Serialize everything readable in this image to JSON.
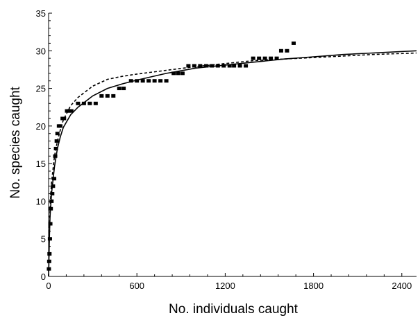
{
  "chart_data": {
    "type": "scatter",
    "title": "",
    "xlabel": "No. individuals caught",
    "ylabel": "No. species caught",
    "xlim": [
      0,
      2500
    ],
    "ylim": [
      0,
      35
    ],
    "xticks": [
      0,
      600,
      1200,
      1800,
      2400
    ],
    "yticks": [
      0,
      5,
      10,
      15,
      20,
      25,
      30,
      35
    ],
    "grid": false,
    "legend": "none",
    "colors": {
      "series": "#000000",
      "axis": "#000000",
      "background": "#ffffff"
    },
    "series": [
      {
        "kind": "observed-steps",
        "style": "square-markers",
        "points": [
          [
            2,
            1
          ],
          [
            4,
            2
          ],
          [
            6,
            3
          ],
          [
            9,
            5
          ],
          [
            12,
            7
          ],
          [
            15,
            9
          ],
          [
            20,
            10
          ],
          [
            25,
            11
          ],
          [
            30,
            12
          ],
          [
            38,
            13
          ],
          [
            45,
            16
          ],
          [
            50,
            17
          ],
          [
            55,
            18
          ],
          [
            60,
            19
          ],
          [
            70,
            20
          ],
          [
            80,
            20
          ],
          [
            95,
            21
          ],
          [
            105,
            21
          ],
          [
            125,
            22
          ],
          [
            140,
            22
          ],
          [
            155,
            22
          ],
          [
            200,
            23
          ],
          [
            240,
            23
          ],
          [
            280,
            23
          ],
          [
            320,
            23
          ],
          [
            360,
            24
          ],
          [
            400,
            24
          ],
          [
            440,
            24
          ],
          [
            480,
            25
          ],
          [
            510,
            25
          ],
          [
            560,
            26
          ],
          [
            600,
            26
          ],
          [
            640,
            26
          ],
          [
            680,
            26
          ],
          [
            720,
            26
          ],
          [
            760,
            26
          ],
          [
            800,
            26
          ],
          [
            850,
            27
          ],
          [
            880,
            27
          ],
          [
            910,
            27
          ],
          [
            950,
            28
          ],
          [
            990,
            28
          ],
          [
            1030,
            28
          ],
          [
            1070,
            28
          ],
          [
            1110,
            28
          ],
          [
            1150,
            28
          ],
          [
            1190,
            28
          ],
          [
            1230,
            28
          ],
          [
            1260,
            28
          ],
          [
            1300,
            28
          ],
          [
            1340,
            28
          ],
          [
            1390,
            29
          ],
          [
            1430,
            29
          ],
          [
            1470,
            29
          ],
          [
            1510,
            29
          ],
          [
            1550,
            29
          ],
          [
            1580,
            30
          ],
          [
            1620,
            30
          ],
          [
            1665,
            31
          ]
        ]
      },
      {
        "kind": "fitted-solid",
        "style": "solid",
        "points": [
          [
            0,
            0
          ],
          [
            5,
            5
          ],
          [
            10,
            8
          ],
          [
            20,
            11
          ],
          [
            40,
            14.6
          ],
          [
            60,
            17
          ],
          [
            80,
            18.6
          ],
          [
            100,
            19.8
          ],
          [
            150,
            21.5
          ],
          [
            200,
            22.5
          ],
          [
            300,
            24
          ],
          [
            400,
            25
          ],
          [
            500,
            25.6
          ],
          [
            600,
            26.1
          ],
          [
            800,
            27
          ],
          [
            1000,
            27.7
          ],
          [
            1200,
            28.1
          ],
          [
            1400,
            28.5
          ],
          [
            1600,
            28.9
          ],
          [
            1800,
            29.2
          ],
          [
            2000,
            29.5
          ],
          [
            2200,
            29.7
          ],
          [
            2500,
            30
          ]
        ]
      },
      {
        "kind": "fitted-dashed",
        "style": "dashed",
        "points": [
          [
            0,
            0
          ],
          [
            5,
            6
          ],
          [
            10,
            9
          ],
          [
            20,
            12.5
          ],
          [
            40,
            16
          ],
          [
            60,
            18
          ],
          [
            80,
            19.5
          ],
          [
            100,
            20.8
          ],
          [
            150,
            22.7
          ],
          [
            200,
            23.8
          ],
          [
            300,
            25.3
          ],
          [
            400,
            26.2
          ],
          [
            500,
            26.6
          ],
          [
            600,
            26.9
          ],
          [
            800,
            27.4
          ],
          [
            1000,
            27.9
          ],
          [
            1200,
            28.3
          ],
          [
            1400,
            28.7
          ],
          [
            1600,
            28.9
          ],
          [
            1800,
            29.1
          ],
          [
            2000,
            29.3
          ],
          [
            2200,
            29.5
          ],
          [
            2500,
            29.7
          ]
        ]
      }
    ]
  }
}
